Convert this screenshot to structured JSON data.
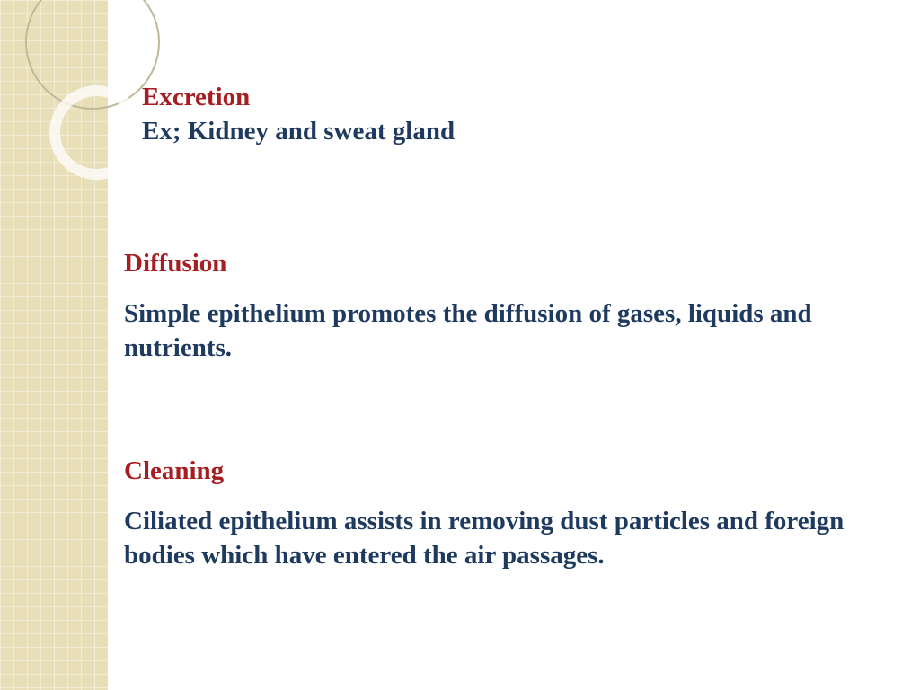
{
  "colors": {
    "heading": "#a61e22",
    "body": "#1f3a5f",
    "sidebar_bg": "#e8dfb8",
    "sidebar_grid": "#f2ecd4",
    "circle_border": "#bfb998",
    "circle_ring": "rgba(255,255,255,0.75)",
    "page_bg": "#ffffff"
  },
  "typography": {
    "font_family": "Georgia, 'Times New Roman', serif",
    "heading_size_pt": 22,
    "body_size_pt": 22,
    "weight": "bold"
  },
  "sections": {
    "excretion": {
      "title": "Excretion",
      "subtitle": "Ex; Kidney and sweat gland"
    },
    "diffusion": {
      "title": "Diffusion",
      "body": "Simple epithelium promotes the diffusion of gases, liquids and nutrients."
    },
    "cleaning": {
      "title": "Cleaning",
      "body": "Ciliated epithelium assists in removing dust particles and foreign bodies which have entered the air passages."
    }
  }
}
